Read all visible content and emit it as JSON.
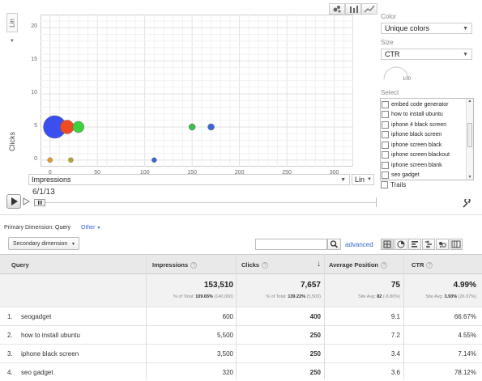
{
  "chart": {
    "y_axis_scale": "Lin",
    "y_axis_label": "Clicks",
    "x_axis_metric": "Impressions",
    "x_axis_scale": "Lin",
    "date": "6/1/13",
    "y_ticks": [
      "20",
      "15",
      "10",
      "5",
      "0"
    ],
    "x_ticks": [
      "0",
      "50",
      "100",
      "150",
      "200",
      "250",
      "300"
    ]
  },
  "chart_data": {
    "type": "scatter",
    "xlabel": "Impressions",
    "ylabel": "Clicks",
    "xlim": [
      -10,
      320
    ],
    "ylim": [
      -1,
      22
    ],
    "points": [
      {
        "x": 5,
        "y": 5,
        "size": 26,
        "color": "#3b4ff0"
      },
      {
        "x": 18,
        "y": 5,
        "size": 15,
        "color": "#f04a24"
      },
      {
        "x": 30,
        "y": 5,
        "size": 12,
        "color": "#3dd13d"
      },
      {
        "x": 150,
        "y": 5,
        "size": 6,
        "color": "#3dbf4d"
      },
      {
        "x": 170,
        "y": 5,
        "size": 6,
        "color": "#3a66d8"
      },
      {
        "x": 0,
        "y": 0,
        "size": 4,
        "color": "#e89a2a"
      },
      {
        "x": 22,
        "y": 0,
        "size": 4,
        "color": "#b8a42a"
      },
      {
        "x": 110,
        "y": 0,
        "size": 4,
        "color": "#3a66d8"
      }
    ]
  },
  "controls": {
    "color_label": "Color",
    "color_value": "Unique colors",
    "size_label": "Size",
    "size_value": "CTR",
    "size_dial_value": "100",
    "select_label": "Select",
    "select_items": [
      "embed code generator",
      "how to install ubuntu",
      "iphone 4 black screen",
      "iphone black screen",
      "iphone screen black",
      "iphone screen blackout",
      "iphone screen blank",
      "seo gadget"
    ],
    "trails_label": "Trails"
  },
  "dimension": {
    "primary_label": "Primary Dimension:",
    "primary_value": "Query",
    "other_label": "Other",
    "secondary_label": "Secondary dimension",
    "advanced_label": "advanced",
    "search_placeholder": ""
  },
  "table": {
    "headers": [
      "Query",
      "Impressions",
      "Clicks",
      "Average Position",
      "CTR"
    ],
    "totals": [
      {
        "value": "153,510",
        "sub_pre": "% of Total: ",
        "sub_bold": "109.65%",
        "sub_post": " (140,000)"
      },
      {
        "value": "7,657",
        "sub_pre": "% of Total: ",
        "sub_bold": "139.22%",
        "sub_post": " (5,500)"
      },
      {
        "value": "75",
        "sub_pre": "Site Avg: ",
        "sub_bold": "82",
        "sub_post": " (-8.80%)"
      },
      {
        "value": "4.99%",
        "sub_pre": "Site Avg: ",
        "sub_bold": "3.93%",
        "sub_post": " (26.97%)"
      }
    ],
    "rows": [
      {
        "num": "1.",
        "query": "seogadget",
        "impressions": "600",
        "clicks": "400",
        "position": "9.1",
        "ctr": "66.67%"
      },
      {
        "num": "2.",
        "query": "how to install ubuntu",
        "impressions": "5,500",
        "clicks": "250",
        "position": "7.2",
        "ctr": "4.55%"
      },
      {
        "num": "3.",
        "query": "iphone black screen",
        "impressions": "3,500",
        "clicks": "250",
        "position": "3.4",
        "ctr": "7.14%"
      },
      {
        "num": "4.",
        "query": "seo gadget",
        "impressions": "320",
        "clicks": "250",
        "position": "3.6",
        "ctr": "78.12%"
      }
    ]
  }
}
